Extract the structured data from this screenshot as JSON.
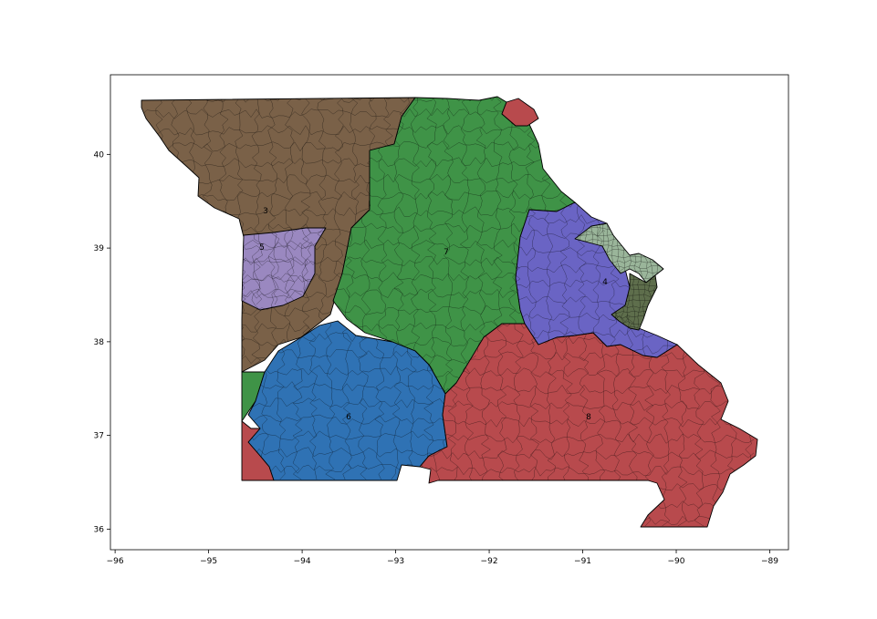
{
  "map": {
    "x_ticks": [
      {
        "value": -96,
        "label": "−96"
      },
      {
        "value": -95,
        "label": "−95"
      },
      {
        "value": -94,
        "label": "−94"
      },
      {
        "value": -93,
        "label": "−93"
      },
      {
        "value": -92,
        "label": "−92"
      },
      {
        "value": -91,
        "label": "−91"
      },
      {
        "value": -90,
        "label": "−90"
      },
      {
        "value": -89,
        "label": "−89"
      }
    ],
    "y_ticks": [
      {
        "value": 36,
        "label": "36"
      },
      {
        "value": 37,
        "label": "37"
      },
      {
        "value": 38,
        "label": "38"
      },
      {
        "value": 39,
        "label": "39"
      },
      {
        "value": 40,
        "label": "40"
      }
    ],
    "xlim": [
      -96.05,
      -88.8
    ],
    "ylim": [
      35.78,
      40.85
    ],
    "districts": [
      {
        "id": "3",
        "label": "3",
        "color": "#7a6148"
      },
      {
        "id": "5",
        "label": "5",
        "color": "#9a88c0"
      },
      {
        "id": "7",
        "label": "7",
        "color": "#3f9347"
      },
      {
        "id": "4",
        "label": "4",
        "color": "#6a64c4"
      },
      {
        "id": "6",
        "label": "6",
        "color": "#2f72b4"
      },
      {
        "id": "8",
        "label": "8",
        "color": "#b84a4d"
      },
      {
        "id": "1",
        "label": "",
        "color": "#5e6e4c"
      },
      {
        "id": "2",
        "label": "",
        "color": "#9ab59a"
      }
    ]
  }
}
